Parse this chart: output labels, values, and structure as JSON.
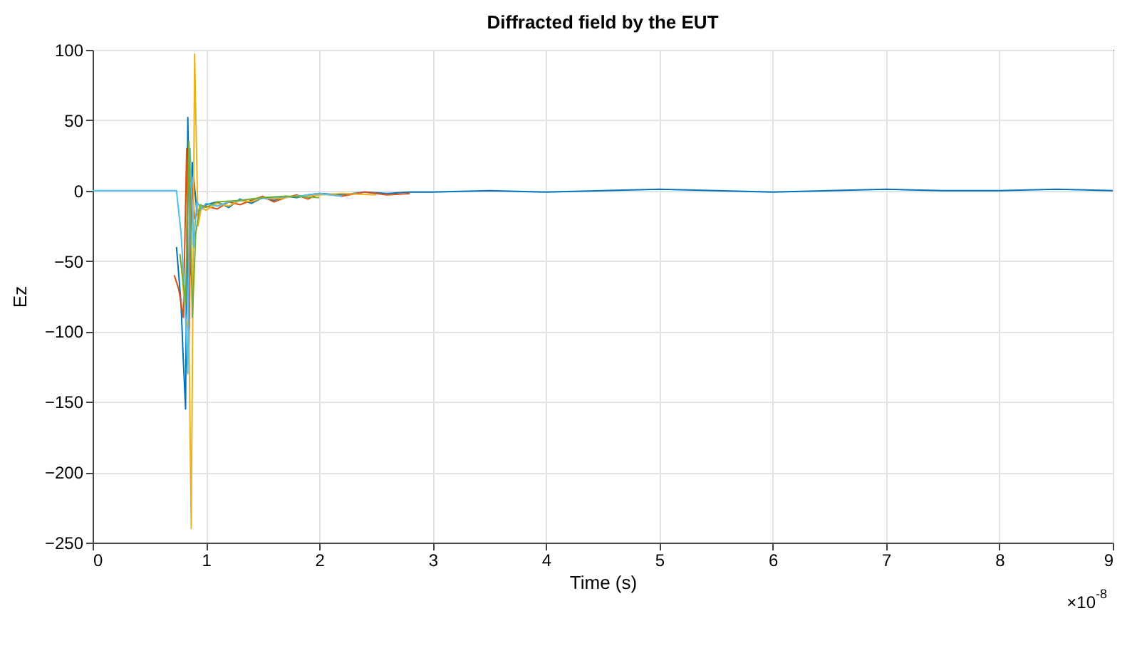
{
  "chart_data": {
    "type": "line",
    "title": "Diffracted field by the EUT",
    "xlabel": "Time (s)",
    "ylabel": "Ez",
    "annotations": [
      "×10$^{-8}$"
    ],
    "xlim": [
      0,
      9
    ],
    "ylim": [
      -250,
      100
    ],
    "xticks": [
      0,
      1,
      2,
      3,
      4,
      5,
      6,
      7,
      8,
      9
    ],
    "yticks": [
      -250,
      -200,
      -150,
      -100,
      -50,
      0,
      50,
      100
    ],
    "grid": true,
    "legend": false,
    "marker": "none",
    "line_style": "solid",
    "series": [
      {
        "color": "#0072bd",
        "x": [
          0.74,
          0.78,
          0.8,
          0.82,
          0.84,
          0.86,
          0.88,
          0.92,
          0.96,
          1.0,
          1.1,
          1.2,
          1.3,
          1.4,
          1.5,
          1.6,
          1.7,
          1.8,
          1.9,
          2.0,
          2.2,
          2.4,
          2.6,
          2.8,
          3.0,
          3.5,
          4.0,
          4.5,
          5,
          5.5,
          6,
          6.5,
          7,
          7.5,
          8,
          8.5,
          9
        ],
        "values": [
          -40,
          -80,
          -120,
          -155,
          52,
          -60,
          20,
          -15,
          -12,
          -10,
          -8,
          -12,
          -6,
          -9,
          -5,
          -7,
          -4,
          -5,
          -3,
          -2,
          -3,
          -1,
          -2,
          -1,
          -1,
          0,
          -1,
          0,
          1,
          0,
          -1,
          0,
          1,
          0,
          0,
          1,
          0
        ]
      },
      {
        "color": "#d95319",
        "x": [
          0.72,
          0.76,
          0.8,
          0.83,
          0.85,
          0.87,
          0.9,
          0.94,
          1.0,
          1.1,
          1.2,
          1.3,
          1.4,
          1.5,
          1.6,
          1.7,
          1.8,
          1.9,
          2.0,
          2.2,
          2.4,
          2.6,
          2.8
        ],
        "values": [
          -60,
          -70,
          -90,
          30,
          -110,
          10,
          -20,
          -14,
          -11,
          -13,
          -8,
          -10,
          -7,
          -4,
          -8,
          -5,
          -3,
          -6,
          -2,
          -4,
          -1,
          -3,
          -2
        ]
      },
      {
        "color": "#edb120",
        "x": [
          0.78,
          0.82,
          0.85,
          0.87,
          0.9,
          0.93,
          0.96,
          1.0,
          1.1,
          1.2,
          1.3,
          1.4,
          1.5,
          1.6,
          1.8,
          2.0,
          2.2,
          2.5
        ],
        "values": [
          -50,
          -90,
          -100,
          -240,
          97,
          -25,
          -12,
          -14,
          -9,
          -11,
          -7,
          -8,
          -5,
          -6,
          -4,
          -3,
          -2,
          -3
        ]
      },
      {
        "color": "#4dbeee",
        "x": [
          0,
          0.74,
          0.78,
          0.81,
          0.84,
          0.86,
          0.89,
          0.92,
          0.96,
          1.0,
          1.1,
          1.2,
          1.4,
          1.6,
          1.8,
          2.0,
          2.2
        ],
        "values": [
          0,
          0,
          -30,
          -70,
          -130,
          30,
          -40,
          -8,
          -13,
          -9,
          -11,
          -8,
          -6,
          -5,
          -4,
          -2,
          -4
        ]
      },
      {
        "color": "#77ac30",
        "x": [
          0.77,
          0.82,
          0.85,
          0.88,
          0.91,
          0.95,
          1.0,
          1.1,
          1.3,
          1.5,
          1.7,
          2.0
        ],
        "values": [
          -45,
          -80,
          35,
          -90,
          -30,
          -10,
          -12,
          -8,
          -7,
          -5,
          -4,
          -5
        ]
      }
    ]
  }
}
